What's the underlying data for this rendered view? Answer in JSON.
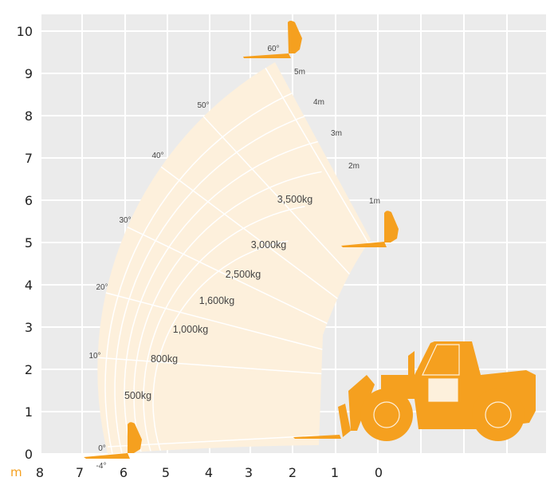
{
  "unit_label": "m",
  "y_axis_ticks": [
    "0",
    "1",
    "2",
    "3",
    "4",
    "5",
    "6",
    "7",
    "8",
    "9",
    "10"
  ],
  "x_axis_ticks": [
    "8",
    "7",
    "6",
    "5",
    "4",
    "3",
    "2",
    "1",
    "0"
  ],
  "angle_labels": [
    "60°",
    "50°",
    "40°",
    "30°",
    "20°",
    "10°",
    "0°",
    "-4°"
  ],
  "extension_labels": [
    "5m",
    "4m",
    "3m",
    "2m",
    "1m"
  ],
  "load_labels": [
    "3,500kg",
    "3,000kg",
    "2,500kg",
    "1,600kg",
    "1,000kg",
    "800kg",
    "500kg"
  ],
  "colors": {
    "grid_bg": "#ebebeb",
    "envelope": "#fdf0dc",
    "machine": "#f5a01f",
    "unit": "#f5a01f"
  }
}
